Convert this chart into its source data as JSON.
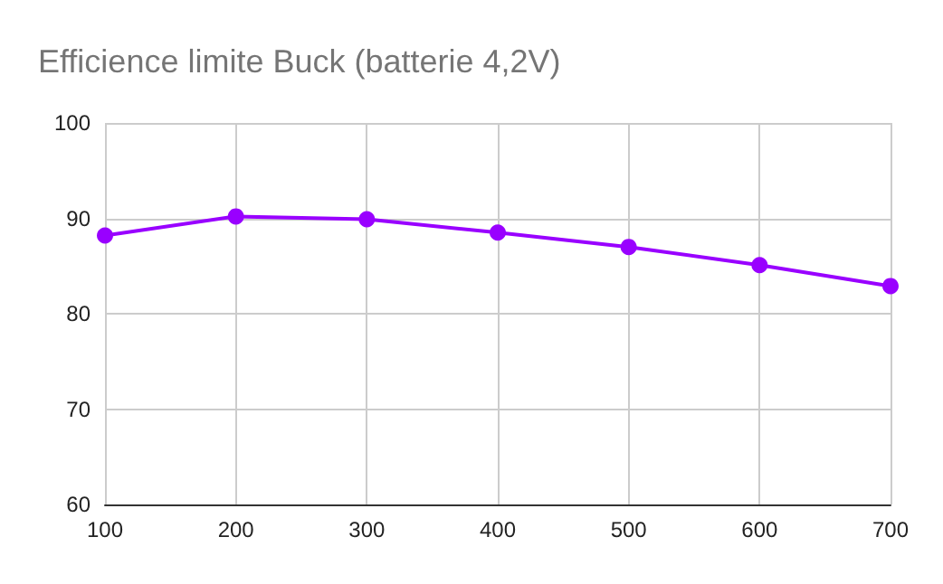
{
  "chart_data": {
    "type": "line",
    "title": "Efficience limite Buck (batterie 4,2V)",
    "x": [
      100,
      200,
      300,
      400,
      500,
      600,
      700
    ],
    "series": [
      {
        "color": "#9900ff",
        "values": [
          88.2,
          90.2,
          89.9,
          88.5,
          87.0,
          85.1,
          82.9
        ]
      }
    ],
    "xlim": [
      100,
      700
    ],
    "xticks": [
      100,
      200,
      300,
      400,
      500,
      600,
      700
    ],
    "ylim": [
      60,
      100
    ],
    "yticks": [
      60,
      70,
      80,
      90,
      100
    ],
    "grid": true,
    "marker": "circle",
    "line_style": "solid"
  }
}
